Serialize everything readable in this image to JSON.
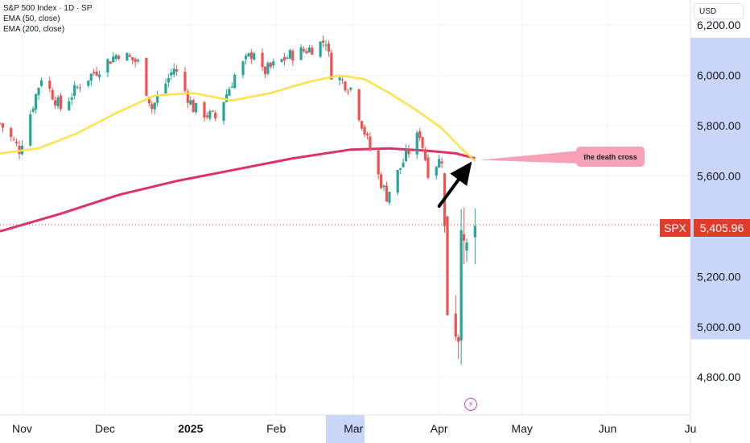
{
  "legend": {
    "title": "S&P 500 Index · 1D · SP",
    "ema50": "EMA (50, close)",
    "ema200": "EMA (200, close)"
  },
  "currency": "USD",
  "colors": {
    "up": "#26a69a",
    "down": "#ef5350",
    "ema50": "#fbe44b",
    "ema200": "#e0306a",
    "price_tag": "#e03b2c",
    "highlight": "#c9d6f7",
    "callout": "#f6a1b8"
  },
  "annotation": {
    "label": "the death cross",
    "arrow_start": [
      "2025-04-01",
      5480
    ],
    "arrow_end": [
      "2025-04-14",
      5670
    ]
  },
  "last_price": {
    "ticker": "SPX",
    "value": "5,405.96",
    "numeric": 5405.96
  },
  "event_icon": "lightning-icon",
  "chart_data": {
    "type": "candlestick",
    "title": "S&P 500 Index · 1D · SP",
    "ylim": [
      4650,
      6300
    ],
    "xlim": [
      "2024-10-24",
      "2025-07-01"
    ],
    "y_ticks": [
      "6,200.00",
      "6,000.00",
      "5,800.00",
      "5,600.00",
      "5,400.00",
      "5,200.00",
      "5,000.00",
      "4,800.00"
    ],
    "y_tick_values": [
      6200,
      6000,
      5800,
      5600,
      5400,
      5200,
      5000,
      4800
    ],
    "x_ticks": [
      {
        "label": "Nov",
        "date": "2024-11-01",
        "bold": false
      },
      {
        "label": "Dec",
        "date": "2024-12-01",
        "bold": false
      },
      {
        "label": "2025",
        "date": "2025-01-01",
        "bold": true
      },
      {
        "label": "Feb",
        "date": "2025-02-01",
        "bold": false
      },
      {
        "label": "Mar",
        "date": "2025-03-01",
        "bold": false
      },
      {
        "label": "Apr",
        "date": "2025-04-01",
        "bold": false
      },
      {
        "label": "May",
        "date": "2025-05-01",
        "bold": false
      },
      {
        "label": "Jun",
        "date": "2025-06-01",
        "bold": false
      },
      {
        "label": "Ju",
        "date": "2025-07-01",
        "bold": false
      }
    ],
    "x_highlight": [
      "2025-02-19",
      "2025-03-05"
    ],
    "y_highlight": [
      4950,
      6150
    ],
    "ohlc_anchors": [
      [
        "2024-10-24",
        5810
      ],
      [
        "2024-10-31",
        5705
      ],
      [
        "2024-11-08",
        5995
      ],
      [
        "2024-11-15",
        5870
      ],
      [
        "2024-11-22",
        5965
      ],
      [
        "2024-11-29",
        6030
      ],
      [
        "2024-12-06",
        6090
      ],
      [
        "2024-12-13",
        6050
      ],
      [
        "2024-12-18",
        5870
      ],
      [
        "2024-12-26",
        6030
      ],
      [
        "2025-01-02",
        5870
      ],
      [
        "2025-01-10",
        5830
      ],
      [
        "2025-01-17",
        6000
      ],
      [
        "2025-01-24",
        6100
      ],
      [
        "2025-01-27",
        6010
      ],
      [
        "2025-02-06",
        6080
      ],
      [
        "2025-02-14",
        6110
      ],
      [
        "2025-02-19",
        6140
      ],
      [
        "2025-02-21",
        6010
      ],
      [
        "2025-02-28",
        5950
      ],
      [
        "2025-03-06",
        5740
      ],
      [
        "2025-03-10",
        5600
      ],
      [
        "2025-03-13",
        5520
      ],
      [
        "2025-03-20",
        5680
      ],
      [
        "2025-03-25",
        5770
      ],
      [
        "2025-03-28",
        5620
      ],
      [
        "2025-04-02",
        5670
      ],
      [
        "2025-04-04",
        5080
      ],
      [
        "2025-04-08",
        4980
      ],
      [
        "2025-04-09",
        5460
      ],
      [
        "2025-04-10",
        5270
      ],
      [
        "2025-04-14",
        5400
      ]
    ],
    "series": [
      {
        "name": "EMA (50, close)",
        "points": [
          [
            "2024-10-24",
            5690
          ],
          [
            "2024-11-07",
            5710
          ],
          [
            "2024-11-21",
            5770
          ],
          [
            "2024-12-05",
            5850
          ],
          [
            "2024-12-19",
            5920
          ],
          [
            "2025-01-02",
            5930
          ],
          [
            "2025-01-16",
            5900
          ],
          [
            "2025-01-30",
            5930
          ],
          [
            "2025-02-13",
            5975
          ],
          [
            "2025-02-24",
            6000
          ],
          [
            "2025-03-05",
            5985
          ],
          [
            "2025-03-14",
            5930
          ],
          [
            "2025-03-24",
            5860
          ],
          [
            "2025-04-02",
            5790
          ],
          [
            "2025-04-09",
            5710
          ],
          [
            "2025-04-14",
            5660
          ]
        ]
      },
      {
        "name": "EMA (200, close)",
        "points": [
          [
            "2024-10-24",
            5380
          ],
          [
            "2024-11-15",
            5450
          ],
          [
            "2024-12-06",
            5525
          ],
          [
            "2024-12-27",
            5580
          ],
          [
            "2025-01-17",
            5625
          ],
          [
            "2025-02-07",
            5670
          ],
          [
            "2025-02-28",
            5705
          ],
          [
            "2025-03-14",
            5710
          ],
          [
            "2025-03-28",
            5700
          ],
          [
            "2025-04-07",
            5690
          ],
          [
            "2025-04-14",
            5670
          ]
        ]
      }
    ]
  }
}
